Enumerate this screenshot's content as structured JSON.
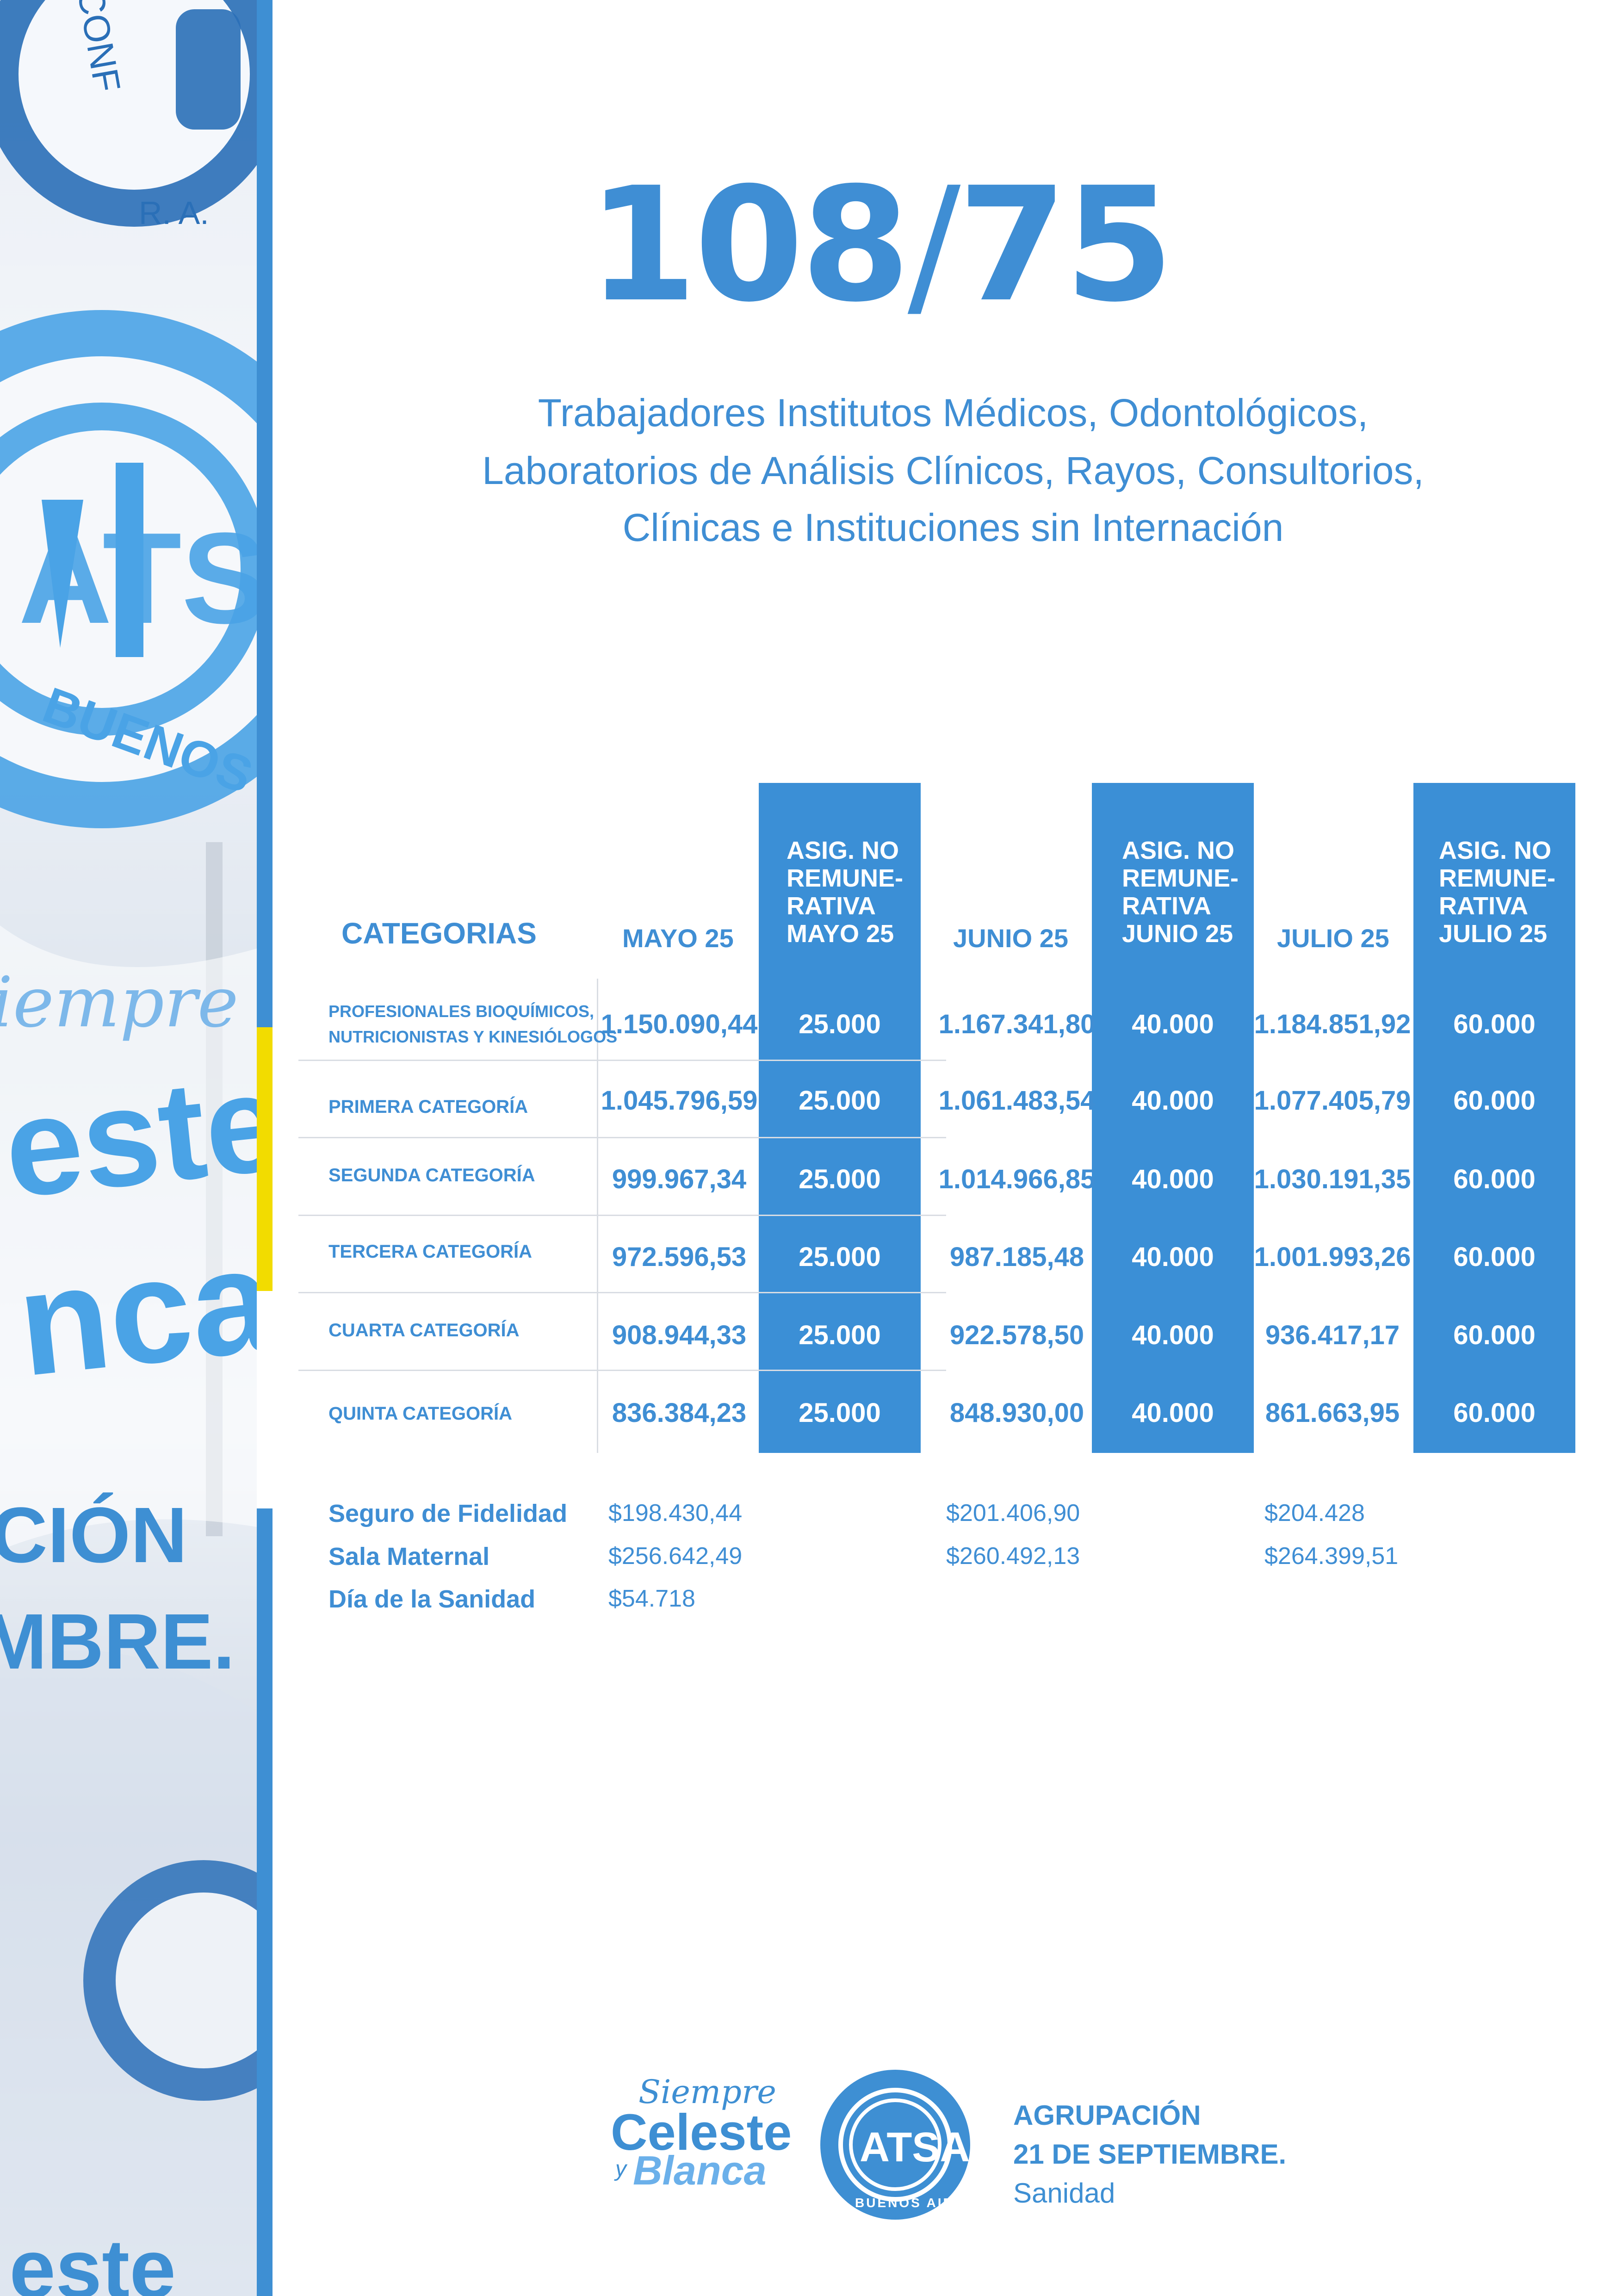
{
  "decor": {
    "stripe_blue": "#3e8fd3",
    "stripe_yellow": "#f2dc00",
    "flag_texts": [
      "CONF",
      "R. A.",
      "ATSA",
      "BUENOS AI",
      "iempre",
      "este",
      "nca",
      "CIÓN",
      "MBRE.",
      "este"
    ]
  },
  "header": {
    "number_left": "108",
    "slash": "/",
    "number_right": "75",
    "subtitle_lines": [
      "Trabajadores Institutos Médicos, Odontológicos,",
      "Laboratorios de Análisis Clínicos, Rayos, Consultorios,",
      "Clínicas e Instituciones sin Internación"
    ]
  },
  "table": {
    "category_header": "CATEGORIAS",
    "columns": [
      {
        "label": "MAYO 25",
        "highlight": false
      },
      {
        "label": "ASIG. NO\nREMUNE-\nRATIVA\nMAYO 25",
        "highlight": true
      },
      {
        "label": "JUNIO 25",
        "highlight": false
      },
      {
        "label": "ASIG. NO\nREMUNE-\nRATIVA\nJUNIO 25",
        "highlight": true
      },
      {
        "label": "JULIO 25",
        "highlight": false
      },
      {
        "label": "ASIG. NO\nREMUNE-\nRATIVA\nJULIO 25",
        "highlight": true
      }
    ],
    "rows": [
      {
        "category": [
          "PROFESIONALES BIOQUÍMICOS,",
          "NUTRICIONISTAS Y KINESIÓLOGOS"
        ],
        "values": [
          "1.150.090,44",
          "25.000",
          "1.167.341,80",
          "40.000",
          "1.184.851,92",
          "60.000"
        ]
      },
      {
        "category": [
          "PRIMERA CATEGORÍA"
        ],
        "values": [
          "1.045.796,59",
          "25.000",
          "1.061.483,54",
          "40.000",
          "1.077.405,79",
          "60.000"
        ]
      },
      {
        "category": [
          "SEGUNDA CATEGORÍA"
        ],
        "values": [
          "999.967,34",
          "25.000",
          "1.014.966,85",
          "40.000",
          "1.030.191,35",
          "60.000"
        ]
      },
      {
        "category": [
          "TERCERA CATEGORÍA"
        ],
        "values": [
          "972.596,53",
          "25.000",
          "987.185,48",
          "40.000",
          "1.001.993,26",
          "60.000"
        ]
      },
      {
        "category": [
          "CUARTA CATEGORÍA"
        ],
        "values": [
          "908.944,33",
          "25.000",
          "922.578,50",
          "40.000",
          "936.417,17",
          "60.000"
        ]
      },
      {
        "category": [
          "QUINTA CATEGORÍA"
        ],
        "values": [
          "836.384,23",
          "25.000",
          "848.930,00",
          "40.000",
          "861.663,95",
          "60.000"
        ]
      }
    ]
  },
  "extras": [
    {
      "label": "Seguro de Fidelidad",
      "mayo": "$198.430,44",
      "junio": "$201.406,90",
      "julio": "$204.428"
    },
    {
      "label": "Sala Maternal",
      "mayo": "$256.642,49",
      "junio": "$260.492,13",
      "julio": "$264.399,51"
    },
    {
      "label": "Día de la Sanidad",
      "mayo": "$54.718",
      "junio": "",
      "julio": ""
    }
  ],
  "footer": {
    "logo_script": "Siempre",
    "logo_celeste": "Celeste",
    "logo_y": "y",
    "logo_blanca": "Blanca",
    "atsa_text": "ATSA",
    "atsa_ring": "BUENOS AIRES",
    "org_line1": "AGRUPACIÓN",
    "org_line2": "21 DE SEPTIEMBRE.",
    "org_line3": "Sanidad"
  }
}
